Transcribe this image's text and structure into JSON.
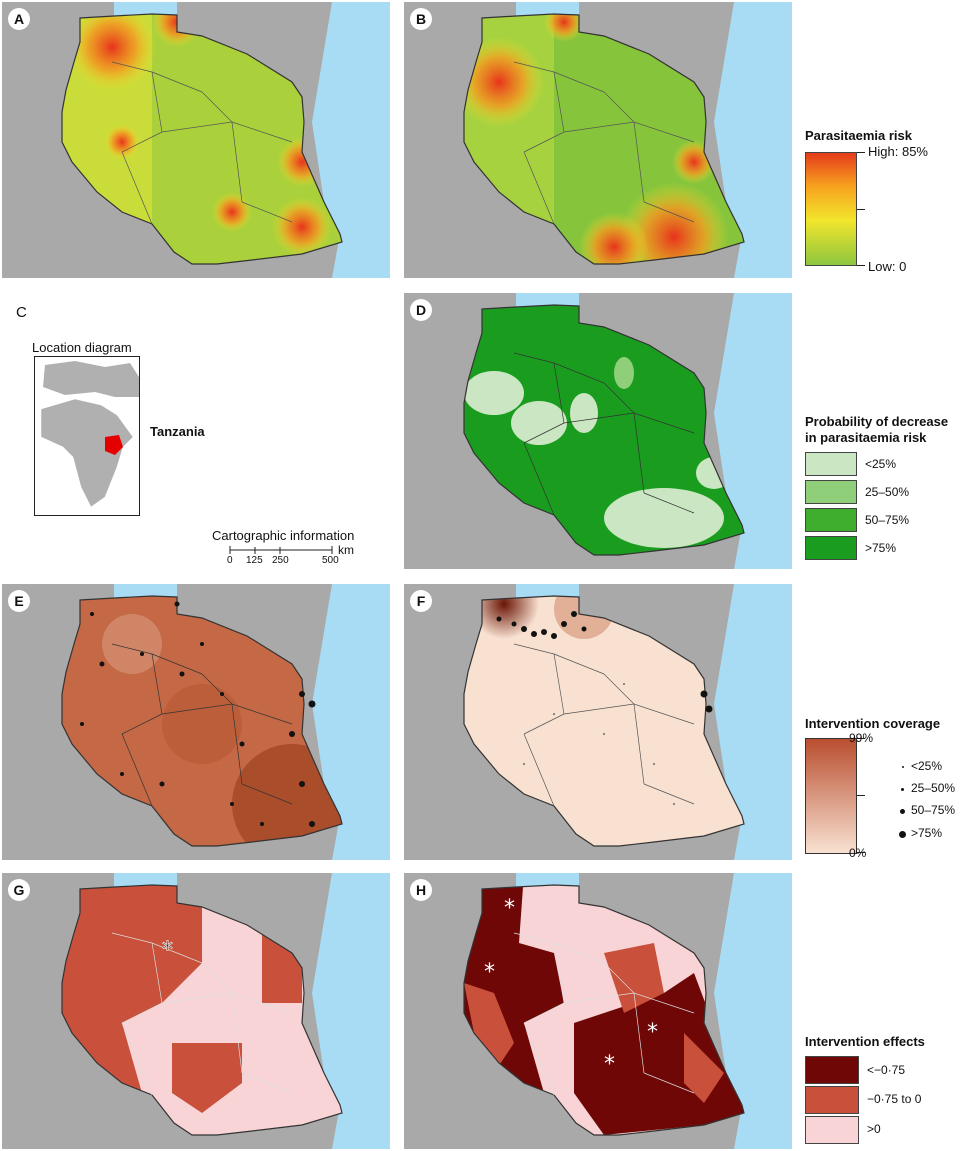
{
  "panels": {
    "A": "A",
    "B": "B",
    "C": "C",
    "D": "D",
    "E": "E",
    "F": "F",
    "G": "G",
    "H": "H"
  },
  "location_diagram": {
    "title": "Location diagram",
    "country": "Tanzania"
  },
  "scale": {
    "title": "Cartographic information",
    "unit": "km",
    "ticks": [
      "0",
      "125",
      "250",
      "500"
    ]
  },
  "legend_parasitaemia": {
    "title": "Parasitaemia risk",
    "high": "High: 85%",
    "low": "Low: 0",
    "colors": [
      "#e53a1a",
      "#f7a21e",
      "#f2e52c",
      "#8cc63f"
    ]
  },
  "legend_probability": {
    "title_line1": "Probability of decrease",
    "title_line2": "in parasitaemia risk",
    "items": [
      {
        "label": "<25%",
        "color": "#cbe6c2"
      },
      {
        "label": "25–50%",
        "color": "#8fcf7a"
      },
      {
        "label": "50–75%",
        "color": "#3fae2f"
      },
      {
        "label": ">75%",
        "color": "#1a9d1f"
      }
    ]
  },
  "legend_coverage": {
    "title": "Intervention coverage",
    "max": "99%",
    "min": "0%",
    "colors": [
      "#b94e2f",
      "#f8e1d1"
    ],
    "dots": [
      "<25%",
      "25–50%",
      "50–75%",
      ">75%"
    ]
  },
  "legend_effects": {
    "title": "Intervention effects",
    "items": [
      {
        "label": "<−0·75",
        "color": "#6f0707"
      },
      {
        "label": "−0·75 to 0",
        "color": "#c9513c"
      },
      {
        "label": ">0",
        "color": "#f8d4d6"
      }
    ]
  },
  "colors": {
    "sea": "#a8dcf5",
    "land": "#a9a9a9",
    "border": "#333333"
  }
}
